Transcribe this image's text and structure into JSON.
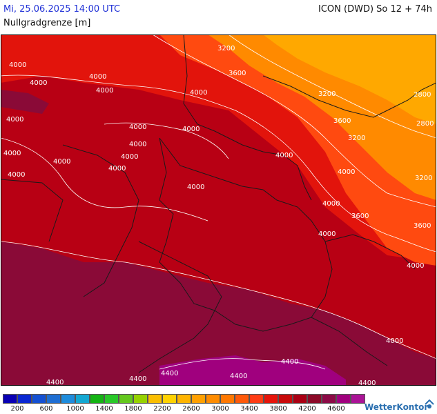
{
  "header": {
    "datetime": "Mi, 25.06.2025 14:00 UTC",
    "model": "ICON (DWD) So 12 + 74h",
    "parameter": "Nullgradgrenze [m]"
  },
  "map": {
    "contour_labels": [
      "4000",
      "4000",
      "4000",
      "4000",
      "4000",
      "4000",
      "4000",
      "4000",
      "4000",
      "4000",
      "4000",
      "4000",
      "4000",
      "4000",
      "4000",
      "4000",
      "4000",
      "4000",
      "4000",
      "4000",
      "4000",
      "3200",
      "3600",
      "3200",
      "2800",
      "3600",
      "2800",
      "3200",
      "3200",
      "3600",
      "3600",
      "4400",
      "4400",
      "4400",
      "4400",
      "4400",
      "4400"
    ],
    "colors": {
      "dark_red": "#b80014",
      "red": "#e2140c",
      "maroon": "#8a0a37",
      "orange_red": "#ff4a10",
      "orange": "#ff8a00",
      "light_orange": "#ffa800",
      "purple": "#a0007e",
      "border": "#1a1a1a",
      "contour": "#ffffff"
    }
  },
  "legend": {
    "colors": [
      "#0a00b4",
      "#0a28d2",
      "#1450d2",
      "#1e6ed2",
      "#1e8cdc",
      "#14a8d2",
      "#14b414",
      "#28c828",
      "#64c81e",
      "#96d200",
      "#fabe00",
      "#ffd200",
      "#ffb400",
      "#ffa000",
      "#ff8c00",
      "#ff7800",
      "#ff5a0a",
      "#ff3c14",
      "#e6140a",
      "#c80a0a",
      "#aa0014",
      "#8c0a28",
      "#8c0a46",
      "#a0007e",
      "#aa1496"
    ],
    "labels": [
      "200",
      "600",
      "1000",
      "1400",
      "1800",
      "2200",
      "2600",
      "3000",
      "3400",
      "3800",
      "4200",
      "4600"
    ]
  },
  "brand": {
    "name": "WetterKontor",
    "icon": "wetterkontor-logo-icon"
  }
}
